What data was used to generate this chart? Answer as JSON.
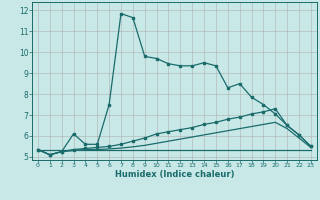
{
  "xlabel": "Humidex (Indice chaleur)",
  "background_color": "#c8e8e8",
  "grid_color": "#b0b0b0",
  "line_color": "#1a6b6b",
  "x_ticks": [
    0,
    1,
    2,
    3,
    4,
    5,
    6,
    7,
    8,
    9,
    10,
    11,
    12,
    13,
    14,
    15,
    16,
    17,
    18,
    19,
    20,
    21,
    22,
    23
  ],
  "y_ticks": [
    5,
    6,
    7,
    8,
    9,
    10,
    11,
    12
  ],
  "ylim": [
    4.85,
    12.4
  ],
  "xlim": [
    -0.5,
    23.5
  ],
  "series1_x": [
    0,
    1,
    2,
    3,
    4,
    5,
    6,
    7,
    8,
    9,
    10,
    11,
    12,
    13,
    14,
    15,
    16,
    17,
    18,
    19,
    20,
    21,
    22,
    23
  ],
  "series1_y": [
    5.35,
    5.1,
    5.25,
    6.1,
    5.6,
    5.6,
    7.5,
    11.85,
    11.65,
    9.8,
    9.7,
    9.45,
    9.35,
    9.35,
    9.5,
    9.35,
    8.3,
    8.5,
    7.85,
    7.5,
    7.05,
    6.5,
    6.05,
    5.5
  ],
  "series2_x": [
    0,
    1,
    2,
    3,
    4,
    5,
    6,
    7,
    8,
    9,
    10,
    11,
    12,
    13,
    14,
    15,
    16,
    17,
    18,
    19,
    20,
    21,
    22,
    23
  ],
  "series2_y": [
    5.35,
    5.1,
    5.25,
    5.35,
    5.4,
    5.45,
    5.5,
    5.6,
    5.75,
    5.9,
    6.1,
    6.2,
    6.3,
    6.4,
    6.55,
    6.65,
    6.8,
    6.9,
    7.05,
    7.15,
    7.3,
    6.5,
    6.05,
    5.5
  ],
  "series3_x": [
    0,
    1,
    2,
    3,
    4,
    5,
    6,
    7,
    8,
    9,
    10,
    11,
    12,
    13,
    14,
    15,
    16,
    17,
    18,
    19,
    20,
    21,
    22,
    23
  ],
  "series3_y": [
    5.35,
    5.1,
    5.25,
    5.3,
    5.35,
    5.35,
    5.38,
    5.42,
    5.48,
    5.55,
    5.65,
    5.75,
    5.85,
    5.95,
    6.05,
    6.15,
    6.25,
    6.35,
    6.45,
    6.55,
    6.65,
    6.35,
    5.9,
    5.45
  ],
  "series4_x": [
    0,
    23
  ],
  "series4_y": [
    5.35,
    5.35
  ]
}
